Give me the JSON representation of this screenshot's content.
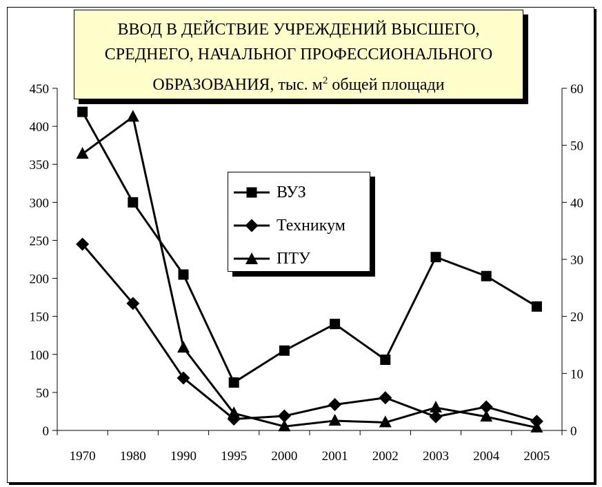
{
  "chart_data": {
    "type": "line",
    "title_lines": [
      "ВВОД В ДЕЙСТВИЕ УЧРЕЖДЕНИЙ ВЫСШЕГО,",
      "СРЕДНЕГО, НАЧАЛЬНОГ ПРОФЕССИОНАЛЬНОГО",
      "ОБРАЗОВАНИЯ, тыс. м",
      "2",
      " общей площади"
    ],
    "categories": [
      "1970",
      "1980",
      "1990",
      "1995",
      "2000",
      "2001",
      "2002",
      "2003",
      "2004",
      "2005"
    ],
    "y_left": {
      "min": 0,
      "max": 450,
      "ticks": [
        "0",
        "50",
        "100",
        "150",
        "200",
        "250",
        "300",
        "350",
        "400",
        "450"
      ]
    },
    "y_right": {
      "min": 0,
      "max": 60,
      "ticks": [
        "0",
        "10",
        "20",
        "30",
        "40",
        "50",
        "60"
      ]
    },
    "series": [
      {
        "name": "ВУЗ",
        "marker": "square",
        "axis": "left",
        "values": [
          419,
          300,
          205,
          63,
          105,
          140,
          93,
          228,
          203,
          163
        ]
      },
      {
        "name": "Техникум",
        "marker": "diamond",
        "axis": "left",
        "values": [
          245,
          167,
          69,
          15,
          19,
          34,
          43,
          18,
          31,
          12
        ]
      },
      {
        "name": "ПТУ",
        "marker": "triangle",
        "axis": "right",
        "values": [
          48.5,
          55,
          14.5,
          3,
          0.7,
          1.7,
          1.4,
          4,
          2.4,
          0.5
        ]
      }
    ],
    "legend_position": "center",
    "grid": false,
    "colors": {
      "line": "#000000",
      "title_bg": "#ffffcc"
    }
  }
}
